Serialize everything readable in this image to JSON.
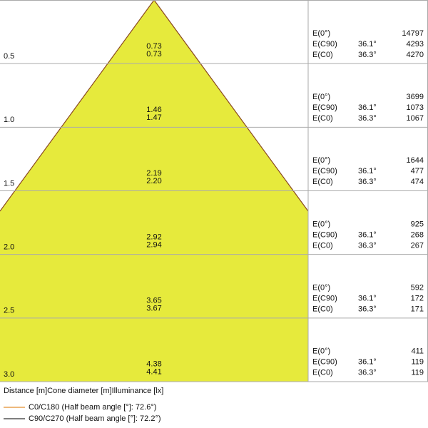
{
  "rows": [
    {
      "distance": "0.5",
      "diameters": [
        "0.73",
        "0.73"
      ],
      "lines": [
        {
          "label": "E(0°)",
          "value": "14797"
        },
        {
          "label": "E(C90)",
          "angle": "36.1°",
          "value": "4293"
        },
        {
          "label": "E(C0)",
          "angle": "36.3°",
          "value": "4270"
        }
      ]
    },
    {
      "distance": "1.0",
      "diameters": [
        "1.46",
        "1.47"
      ],
      "lines": [
        {
          "label": "E(0°)",
          "value": "3699"
        },
        {
          "label": "E(C90)",
          "angle": "36.1°",
          "value": "1073"
        },
        {
          "label": "E(C0)",
          "angle": "36.3°",
          "value": "1067"
        }
      ]
    },
    {
      "distance": "1.5",
      "diameters": [
        "2.19",
        "2.20"
      ],
      "lines": [
        {
          "label": "E(0°)",
          "value": "1644"
        },
        {
          "label": "E(C90)",
          "angle": "36.1°",
          "value": "477"
        },
        {
          "label": "E(C0)",
          "angle": "36.3°",
          "value": "474"
        }
      ]
    },
    {
      "distance": "2.0",
      "diameters": [
        "2.92",
        "2.94"
      ],
      "lines": [
        {
          "label": "E(0°)",
          "value": "925"
        },
        {
          "label": "E(C90)",
          "angle": "36.1°",
          "value": "268"
        },
        {
          "label": "E(C0)",
          "angle": "36.3°",
          "value": "267"
        }
      ]
    },
    {
      "distance": "2.5",
      "diameters": [
        "3.65",
        "3.67"
      ],
      "lines": [
        {
          "label": "E(0°)",
          "value": "592"
        },
        {
          "label": "E(C90)",
          "angle": "36.1°",
          "value": "172"
        },
        {
          "label": "E(C0)",
          "angle": "36.3°",
          "value": "171"
        }
      ]
    },
    {
      "distance": "3.0",
      "diameters": [
        "4.38",
        "4.41"
      ],
      "lines": [
        {
          "label": "E(0°)",
          "value": "411"
        },
        {
          "label": "E(C90)",
          "angle": "36.1°",
          "value": "119"
        },
        {
          "label": "E(C0)",
          "angle": "36.3°",
          "value": "119"
        }
      ]
    }
  ],
  "footer": "Distance [m]Cone diameter [m]Illuminance [lx]",
  "legend": [
    {
      "label": "C0/C180 (Half beam angle [°]: 72.6°)",
      "color": "#e8a050"
    },
    {
      "label": "C90/C270 (Half beam angle [°]: 72.2°)",
      "color": "#555555"
    }
  ]
}
